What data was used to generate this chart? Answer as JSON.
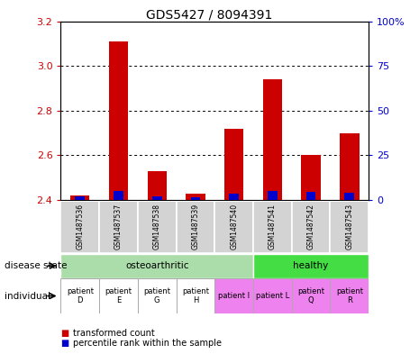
{
  "title": "GDS5427 / 8094391",
  "samples": [
    "GSM1487536",
    "GSM1487537",
    "GSM1487538",
    "GSM1487539",
    "GSM1487540",
    "GSM1487541",
    "GSM1487542",
    "GSM1487543"
  ],
  "red_values": [
    2.42,
    3.11,
    2.53,
    2.43,
    2.72,
    2.94,
    2.6,
    2.7
  ],
  "blue_percentiles": [
    2.0,
    5.0,
    2.0,
    1.5,
    3.5,
    5.0,
    4.5,
    4.0
  ],
  "y_min": 2.4,
  "y_max": 3.2,
  "y_ticks": [
    2.4,
    2.6,
    2.8,
    3.0,
    3.2
  ],
  "right_y_ticks": [
    0,
    25,
    50,
    75,
    100
  ],
  "right_y_tick_labels": [
    "0",
    "25",
    "50",
    "75",
    "100%"
  ],
  "bar_color_red": "#cc0000",
  "bar_color_blue": "#0000cc",
  "bar_width": 0.5,
  "blue_bar_width": 0.25,
  "left_axis_color": "#cc0000",
  "right_axis_color": "#0000cc",
  "legend_red": "transformed count",
  "legend_blue": "percentile rank within the sample",
  "osteo_color": "#aaddaa",
  "healthy_color": "#44dd44",
  "indiv_white_color": "#ffffff",
  "indiv_pink_color": "#ee82ee",
  "gray_color": "#d3d3d3"
}
